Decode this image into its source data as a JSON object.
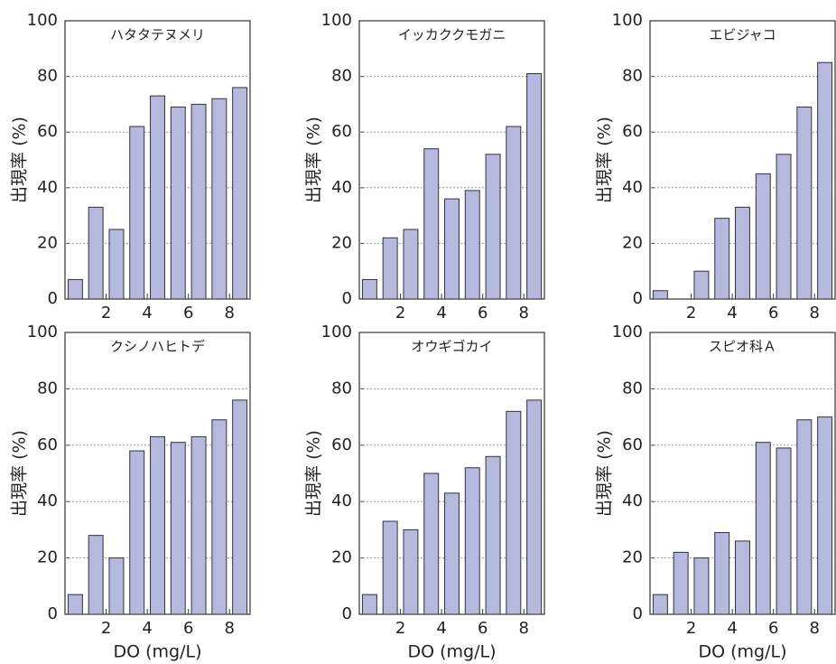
{
  "chart_data": [
    {
      "type": "bar",
      "title": "ハタタテヌメリ",
      "ylabel": "出現率 (%)",
      "x": [
        0.5,
        1.5,
        2.5,
        3.5,
        4.5,
        5.5,
        6.5,
        7.5,
        8.5
      ],
      "values": [
        7,
        33,
        25,
        62,
        73,
        69,
        70,
        72,
        76
      ],
      "color": "#b4b9dd",
      "xlim": [
        0,
        9
      ],
      "xticks": [
        2,
        4,
        6,
        8
      ],
      "ylim": [
        0,
        100
      ],
      "yticks": [
        0,
        20,
        40,
        60,
        80,
        100
      ],
      "grid": true
    },
    {
      "type": "bar",
      "title": "イッカククモガニ",
      "ylabel": "出現率 (%)",
      "x": [
        0.5,
        1.5,
        2.5,
        3.5,
        4.5,
        5.5,
        6.5,
        7.5,
        8.5
      ],
      "values": [
        7,
        22,
        25,
        54,
        36,
        39,
        52,
        62,
        81
      ],
      "color": "#b4b9dd",
      "xlim": [
        0,
        9
      ],
      "xticks": [
        2,
        4,
        6,
        8
      ],
      "ylim": [
        0,
        100
      ],
      "yticks": [
        0,
        20,
        40,
        60,
        80,
        100
      ],
      "grid": true
    },
    {
      "type": "bar",
      "title": "エビジャコ",
      "ylabel": "出現率 (%)",
      "x": [
        0.5,
        1.5,
        2.5,
        3.5,
        4.5,
        5.5,
        6.5,
        7.5,
        8.5
      ],
      "values": [
        3,
        0,
        10,
        29,
        33,
        45,
        52,
        69,
        85
      ],
      "color": "#b4b9dd",
      "xlim": [
        0,
        9
      ],
      "xticks": [
        2,
        4,
        6,
        8
      ],
      "ylim": [
        0,
        100
      ],
      "yticks": [
        0,
        20,
        40,
        60,
        80,
        100
      ],
      "grid": true
    },
    {
      "type": "bar",
      "title": "クシノハヒトデ",
      "ylabel": "出現率 (%)",
      "xlabel": "DO (mg/L)",
      "x": [
        0.5,
        1.5,
        2.5,
        3.5,
        4.5,
        5.5,
        6.5,
        7.5,
        8.5
      ],
      "values": [
        7,
        28,
        20,
        58,
        63,
        61,
        63,
        69,
        76
      ],
      "color": "#b4b9dd",
      "xlim": [
        0,
        9
      ],
      "xticks": [
        2,
        4,
        6,
        8
      ],
      "ylim": [
        0,
        100
      ],
      "yticks": [
        0,
        20,
        40,
        60,
        80,
        100
      ],
      "grid": true
    },
    {
      "type": "bar",
      "title": "オウギゴカイ",
      "ylabel": "出現率 (%)",
      "xlabel": "DO (mg/L)",
      "x": [
        0.5,
        1.5,
        2.5,
        3.5,
        4.5,
        5.5,
        6.5,
        7.5,
        8.5
      ],
      "values": [
        7,
        33,
        30,
        50,
        43,
        52,
        56,
        72,
        76
      ],
      "color": "#b4b9dd",
      "xlim": [
        0,
        9
      ],
      "xticks": [
        2,
        4,
        6,
        8
      ],
      "ylim": [
        0,
        100
      ],
      "yticks": [
        0,
        20,
        40,
        60,
        80,
        100
      ],
      "grid": true
    },
    {
      "type": "bar",
      "title": "スピオ科Ａ",
      "ylabel": "出現率 (%)",
      "xlabel": "DO (mg/L)",
      "x": [
        0.5,
        1.5,
        2.5,
        3.5,
        4.5,
        5.5,
        6.5,
        7.5,
        8.5
      ],
      "values": [
        7,
        22,
        20,
        29,
        26,
        61,
        59,
        69,
        70
      ],
      "color": "#b4b9dd",
      "xlim": [
        0,
        9
      ],
      "xticks": [
        2,
        4,
        6,
        8
      ],
      "ylim": [
        0,
        100
      ],
      "yticks": [
        0,
        20,
        40,
        60,
        80,
        100
      ],
      "grid": true
    }
  ]
}
